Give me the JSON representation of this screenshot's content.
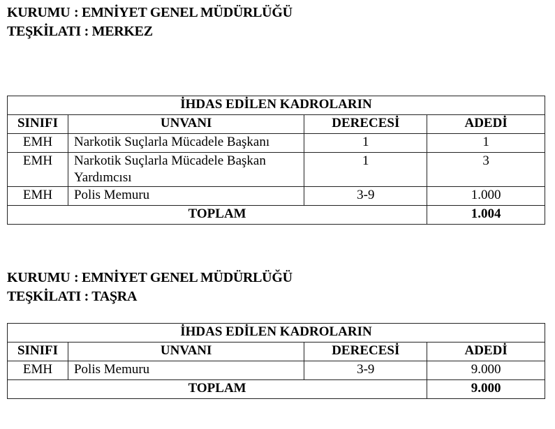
{
  "sections": [
    {
      "kurum_label": "KURUMU",
      "kurum": ": EMNİYET GENEL MÜDÜRLÜĞÜ",
      "teskilat_label": "TEŞKİLATI",
      "teskilat": ": MERKEZ",
      "table_title": "İHDAS EDİLEN KADROLARIN",
      "headers": [
        "SINIFI",
        "UNVANI",
        "DERECESİ",
        "ADEDİ"
      ],
      "rows": [
        [
          "EMH",
          "Narkotik Suçlarla Mücadele Başkanı",
          "1",
          "1"
        ],
        [
          "EMH",
          "Narkotik Suçlarla Mücadele Başkan Yardımcısı",
          "1",
          "3"
        ],
        [
          "EMH",
          "Polis Memuru",
          "3-9",
          "1.000"
        ]
      ],
      "total_label": "TOPLAM",
      "total": "1.004"
    },
    {
      "kurum_label": "KURUMU",
      "kurum": ": EMNİYET GENEL MÜDÜRLÜĞÜ",
      "teskilat_label": "TEŞKİLATI",
      "teskilat": ": TAŞRA",
      "table_title": "İHDAS EDİLEN KADROLARIN",
      "headers": [
        "SINIFI",
        "UNVANI",
        "DERECESİ",
        "ADEDİ"
      ],
      "rows": [
        [
          "EMH",
          "Polis Memuru",
          "3-9",
          "9.000"
        ]
      ],
      "total_label": "TOPLAM",
      "total": "9.000"
    }
  ]
}
